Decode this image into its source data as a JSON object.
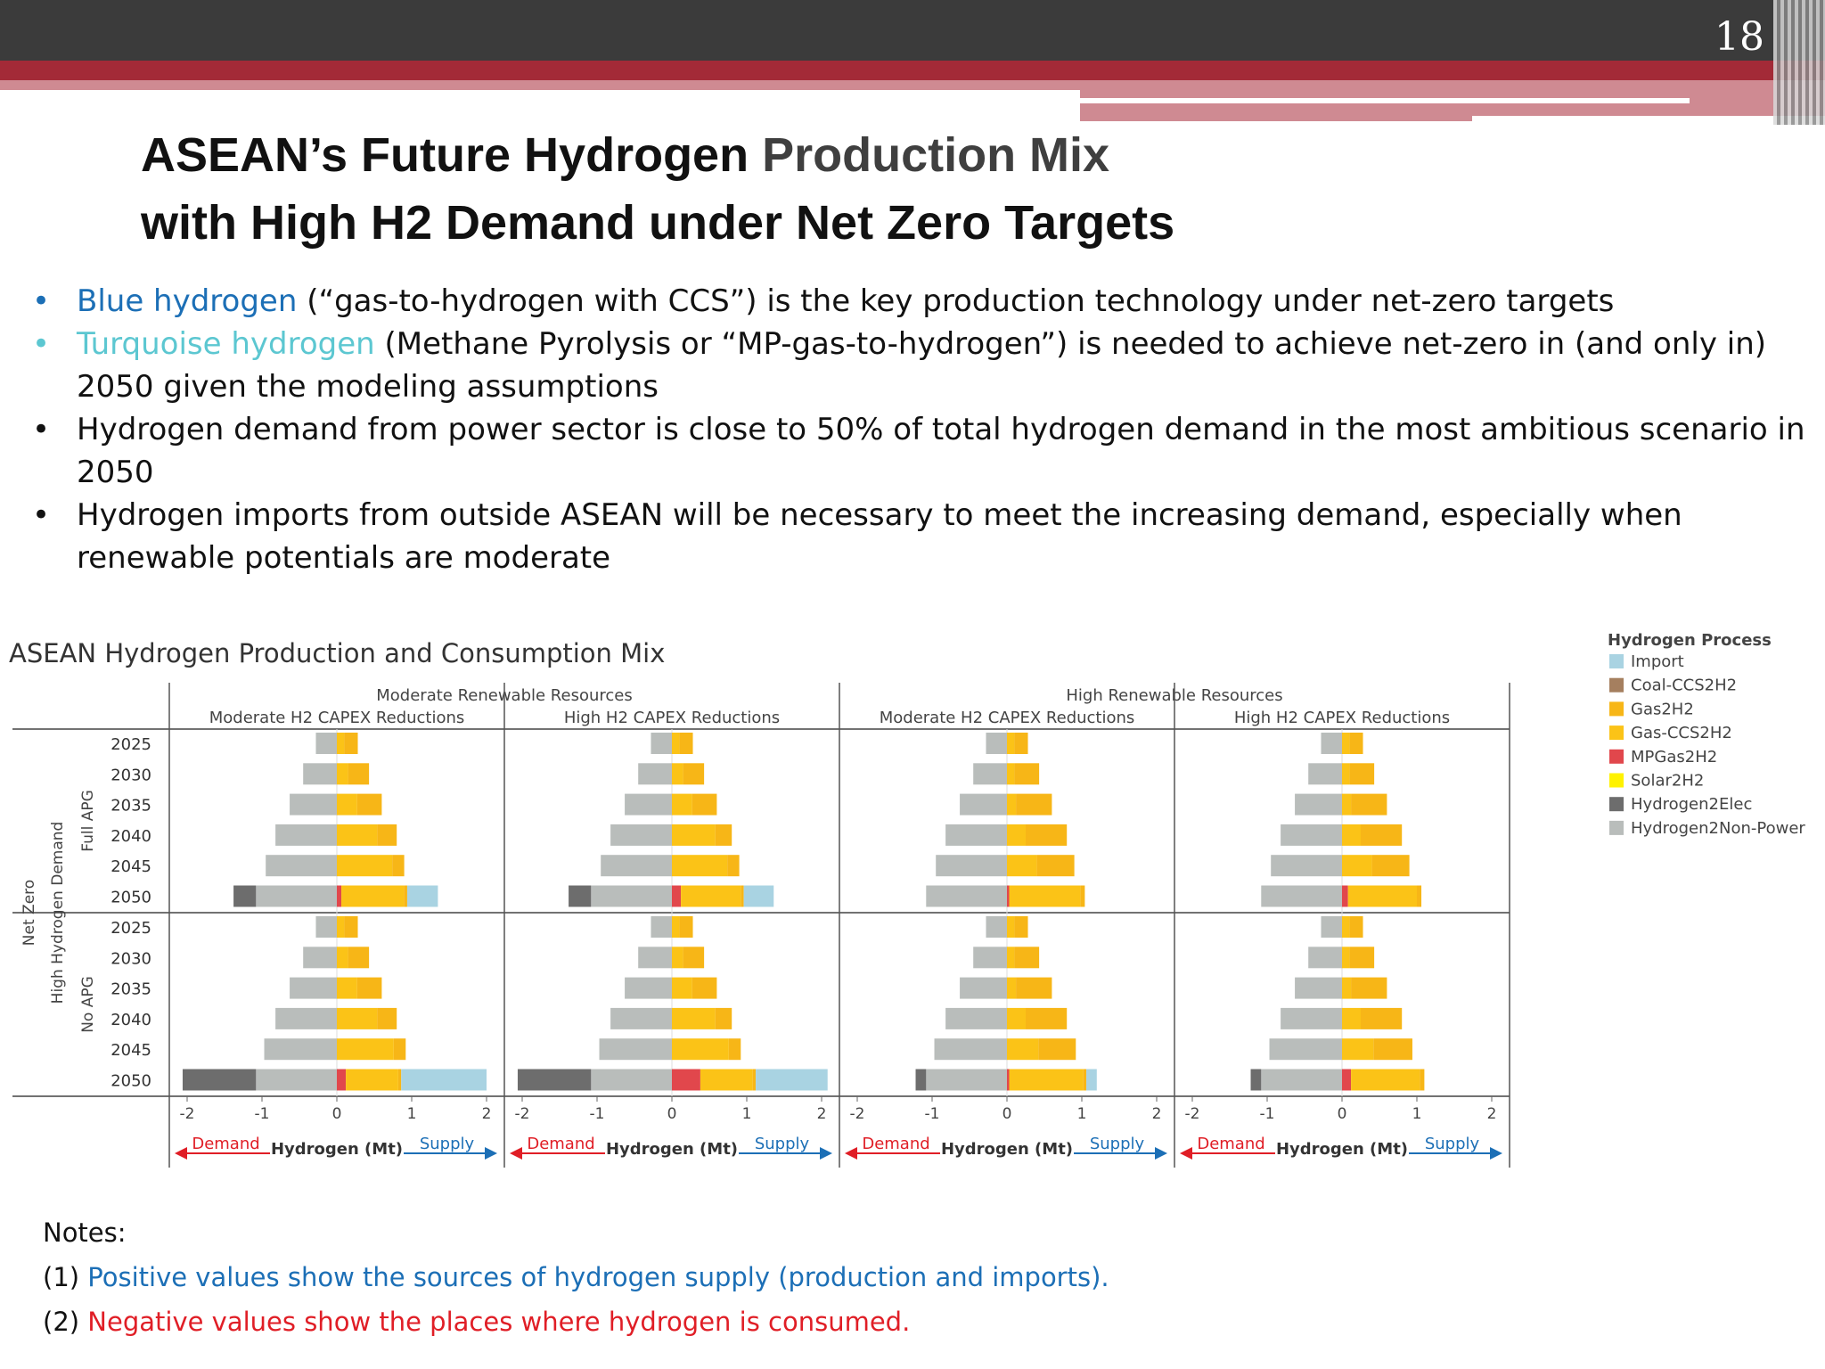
{
  "header": {
    "page_number": "18"
  },
  "title": {
    "line1_a": "ASEAN’s Future Hydrogen ",
    "line1_b": "Production Mix",
    "line2": "with High H2 Demand under Net Zero Targets"
  },
  "bullets": [
    {
      "dot": "•",
      "highlight": "Blue hydrogen",
      "rest": " (“gas-to-hydrogen with CCS”) is the key production technology under net-zero targets"
    },
    {
      "dot": "•",
      "highlight": "Turquoise hydrogen",
      "rest": " (Methane Pyrolysis or “MP-gas-to-hydrogen”) is needed to achieve net-zero in (and only in) 2050 given the modeling assumptions"
    },
    {
      "dot": "•",
      "text": "Hydrogen demand from power sector is close to 50% of total hydrogen demand in the most ambitious scenario in 2050"
    },
    {
      "dot": "•",
      "text": "Hydrogen imports from outside ASEAN will be necessary to meet the increasing demand, especially when renewable potentials are moderate"
    }
  ],
  "notes": {
    "heading": "Notes:",
    "n1_prefix": "(1) ",
    "n1_text": "Positive values show the sources of hydrogen supply (production and imports).",
    "n2_prefix": "(2) ",
    "n2_text": "Negative values show the places where hydrogen is consumed."
  },
  "chart_data": {
    "type": "bar",
    "orientation": "horizontal-stacked",
    "title": "ASEAN Hydrogen Production and Consumption Mix",
    "column_groups": [
      "Moderate Renewable Resources",
      "High Renewable Resources"
    ],
    "columns": [
      "Moderate H2 CAPEX Reductions",
      "High H2 CAPEX Reductions",
      "Moderate H2 CAPEX Reductions",
      "High H2 CAPEX Reductions"
    ],
    "outer_row_label": "Net Zero",
    "middle_row_label": "High Hydrogen Demand",
    "rows": [
      "Full APG",
      "No APG"
    ],
    "years": [
      "2025",
      "2030",
      "2035",
      "2040",
      "2045",
      "2050"
    ],
    "xlabel": "Hydrogen (Mt)",
    "x_ticks": [
      "-2",
      "-1",
      "0",
      "1",
      "2"
    ],
    "xlim": [
      -2,
      2
    ],
    "demand_label": "Demand",
    "supply_label": "Supply",
    "legend_title": "Hydrogen Process",
    "legend": [
      {
        "name": "Import",
        "color": "#a9d3e2"
      },
      {
        "name": "Coal-CCS2H2",
        "color": "#a57f5f"
      },
      {
        "name": "Gas2H2",
        "color": "#f7b617"
      },
      {
        "name": "Gas-CCS2H2",
        "color": "#fbc317"
      },
      {
        "name": "MPGas2H2",
        "color": "#e1474c"
      },
      {
        "name": "Solar2H2",
        "color": "#fff200"
      },
      {
        "name": "Hydrogen2Elec",
        "color": "#6d6d6d"
      },
      {
        "name": "Hydrogen2Non-Power",
        "color": "#b9bdbb"
      }
    ],
    "segment_keys": [
      "Hydrogen2Elec",
      "Hydrogen2Non-Power",
      "MPGas2H2",
      "Gas-CCS2H2",
      "Gas2H2",
      "Import"
    ],
    "panels": [
      {
        "column": 0,
        "row": 0,
        "bars": [
          {
            "year": "2025",
            "Hydrogen2Elec": 0,
            "Hydrogen2Non-Power": -0.28,
            "MPGas2H2": 0,
            "Gas-CCS2H2": 0.1,
            "Gas2H2": 0.18,
            "Import": 0
          },
          {
            "year": "2030",
            "Hydrogen2Elec": 0,
            "Hydrogen2Non-Power": -0.45,
            "MPGas2H2": 0,
            "Gas-CCS2H2": 0.15,
            "Gas2H2": 0.28,
            "Import": 0
          },
          {
            "year": "2035",
            "Hydrogen2Elec": 0,
            "Hydrogen2Non-Power": -0.63,
            "MPGas2H2": 0,
            "Gas-CCS2H2": 0.27,
            "Gas2H2": 0.33,
            "Import": 0
          },
          {
            "year": "2040",
            "Hydrogen2Elec": 0,
            "Hydrogen2Non-Power": -0.82,
            "MPGas2H2": 0,
            "Gas-CCS2H2": 0.54,
            "Gas2H2": 0.26,
            "Import": 0
          },
          {
            "year": "2045",
            "Hydrogen2Elec": 0,
            "Hydrogen2Non-Power": -0.95,
            "MPGas2H2": 0,
            "Gas-CCS2H2": 0.74,
            "Gas2H2": 0.16,
            "Import": 0
          },
          {
            "year": "2050",
            "Hydrogen2Elec": -0.3,
            "Hydrogen2Non-Power": -1.08,
            "MPGas2H2": 0.06,
            "Gas-CCS2H2": 0.84,
            "Gas2H2": 0.04,
            "Import": 0.41
          }
        ]
      },
      {
        "column": 1,
        "row": 0,
        "bars": [
          {
            "year": "2025",
            "Hydrogen2Elec": 0,
            "Hydrogen2Non-Power": -0.28,
            "MPGas2H2": 0,
            "Gas-CCS2H2": 0.1,
            "Gas2H2": 0.18,
            "Import": 0
          },
          {
            "year": "2030",
            "Hydrogen2Elec": 0,
            "Hydrogen2Non-Power": -0.45,
            "MPGas2H2": 0,
            "Gas-CCS2H2": 0.15,
            "Gas2H2": 0.28,
            "Import": 0
          },
          {
            "year": "2035",
            "Hydrogen2Elec": 0,
            "Hydrogen2Non-Power": -0.63,
            "MPGas2H2": 0,
            "Gas-CCS2H2": 0.27,
            "Gas2H2": 0.33,
            "Import": 0
          },
          {
            "year": "2040",
            "Hydrogen2Elec": 0,
            "Hydrogen2Non-Power": -0.82,
            "MPGas2H2": 0,
            "Gas-CCS2H2": 0.58,
            "Gas2H2": 0.22,
            "Import": 0
          },
          {
            "year": "2045",
            "Hydrogen2Elec": 0,
            "Hydrogen2Non-Power": -0.95,
            "MPGas2H2": 0,
            "Gas-CCS2H2": 0.74,
            "Gas2H2": 0.16,
            "Import": 0
          },
          {
            "year": "2050",
            "Hydrogen2Elec": -0.3,
            "Hydrogen2Non-Power": -1.08,
            "MPGas2H2": 0.12,
            "Gas-CCS2H2": 0.8,
            "Gas2H2": 0.04,
            "Import": 0.4
          }
        ]
      },
      {
        "column": 2,
        "row": 0,
        "bars": [
          {
            "year": "2025",
            "Hydrogen2Elec": 0,
            "Hydrogen2Non-Power": -0.28,
            "MPGas2H2": 0,
            "Gas-CCS2H2": 0.1,
            "Gas2H2": 0.18,
            "Import": 0
          },
          {
            "year": "2030",
            "Hydrogen2Elec": 0,
            "Hydrogen2Non-Power": -0.45,
            "MPGas2H2": 0,
            "Gas-CCS2H2": 0.1,
            "Gas2H2": 0.33,
            "Import": 0
          },
          {
            "year": "2035",
            "Hydrogen2Elec": 0,
            "Hydrogen2Non-Power": -0.63,
            "MPGas2H2": 0,
            "Gas-CCS2H2": 0.12,
            "Gas2H2": 0.48,
            "Import": 0
          },
          {
            "year": "2040",
            "Hydrogen2Elec": 0,
            "Hydrogen2Non-Power": -0.82,
            "MPGas2H2": 0,
            "Gas-CCS2H2": 0.25,
            "Gas2H2": 0.55,
            "Import": 0
          },
          {
            "year": "2045",
            "Hydrogen2Elec": 0,
            "Hydrogen2Non-Power": -0.95,
            "MPGas2H2": 0,
            "Gas-CCS2H2": 0.4,
            "Gas2H2": 0.5,
            "Import": 0
          },
          {
            "year": "2050",
            "Hydrogen2Elec": 0,
            "Hydrogen2Non-Power": -1.08,
            "MPGas2H2": 0.03,
            "Gas-CCS2H2": 0.95,
            "Gas2H2": 0.06,
            "Import": 0
          }
        ]
      },
      {
        "column": 3,
        "row": 0,
        "bars": [
          {
            "year": "2025",
            "Hydrogen2Elec": 0,
            "Hydrogen2Non-Power": -0.28,
            "MPGas2H2": 0,
            "Gas-CCS2H2": 0.1,
            "Gas2H2": 0.18,
            "Import": 0
          },
          {
            "year": "2030",
            "Hydrogen2Elec": 0,
            "Hydrogen2Non-Power": -0.45,
            "MPGas2H2": 0,
            "Gas-CCS2H2": 0.1,
            "Gas2H2": 0.33,
            "Import": 0
          },
          {
            "year": "2035",
            "Hydrogen2Elec": 0,
            "Hydrogen2Non-Power": -0.63,
            "MPGas2H2": 0,
            "Gas-CCS2H2": 0.12,
            "Gas2H2": 0.48,
            "Import": 0
          },
          {
            "year": "2040",
            "Hydrogen2Elec": 0,
            "Hydrogen2Non-Power": -0.82,
            "MPGas2H2": 0,
            "Gas-CCS2H2": 0.25,
            "Gas2H2": 0.55,
            "Import": 0
          },
          {
            "year": "2045",
            "Hydrogen2Elec": 0,
            "Hydrogen2Non-Power": -0.95,
            "MPGas2H2": 0,
            "Gas-CCS2H2": 0.4,
            "Gas2H2": 0.5,
            "Import": 0
          },
          {
            "year": "2050",
            "Hydrogen2Elec": 0,
            "Hydrogen2Non-Power": -1.08,
            "MPGas2H2": 0.08,
            "Gas-CCS2H2": 0.92,
            "Gas2H2": 0.06,
            "Import": 0
          }
        ]
      },
      {
        "column": 0,
        "row": 1,
        "bars": [
          {
            "year": "2025",
            "Hydrogen2Elec": 0,
            "Hydrogen2Non-Power": -0.28,
            "MPGas2H2": 0,
            "Gas-CCS2H2": 0.1,
            "Gas2H2": 0.18,
            "Import": 0
          },
          {
            "year": "2030",
            "Hydrogen2Elec": 0,
            "Hydrogen2Non-Power": -0.45,
            "MPGas2H2": 0,
            "Gas-CCS2H2": 0.15,
            "Gas2H2": 0.28,
            "Import": 0
          },
          {
            "year": "2035",
            "Hydrogen2Elec": 0,
            "Hydrogen2Non-Power": -0.63,
            "MPGas2H2": 0,
            "Gas-CCS2H2": 0.27,
            "Gas2H2": 0.33,
            "Import": 0
          },
          {
            "year": "2040",
            "Hydrogen2Elec": 0,
            "Hydrogen2Non-Power": -0.82,
            "MPGas2H2": 0,
            "Gas-CCS2H2": 0.54,
            "Gas2H2": 0.26,
            "Import": 0
          },
          {
            "year": "2045",
            "Hydrogen2Elec": 0,
            "Hydrogen2Non-Power": -0.97,
            "MPGas2H2": 0,
            "Gas-CCS2H2": 0.76,
            "Gas2H2": 0.16,
            "Import": 0
          },
          {
            "year": "2050",
            "Hydrogen2Elec": -0.98,
            "Hydrogen2Non-Power": -1.08,
            "MPGas2H2": 0.12,
            "Gas-CCS2H2": 0.7,
            "Gas2H2": 0.04,
            "Import": 1.14
          }
        ]
      },
      {
        "column": 1,
        "row": 1,
        "bars": [
          {
            "year": "2025",
            "Hydrogen2Elec": 0,
            "Hydrogen2Non-Power": -0.28,
            "MPGas2H2": 0,
            "Gas-CCS2H2": 0.1,
            "Gas2H2": 0.18,
            "Import": 0
          },
          {
            "year": "2030",
            "Hydrogen2Elec": 0,
            "Hydrogen2Non-Power": -0.45,
            "MPGas2H2": 0,
            "Gas-CCS2H2": 0.15,
            "Gas2H2": 0.28,
            "Import": 0
          },
          {
            "year": "2035",
            "Hydrogen2Elec": 0,
            "Hydrogen2Non-Power": -0.63,
            "MPGas2H2": 0,
            "Gas-CCS2H2": 0.27,
            "Gas2H2": 0.33,
            "Import": 0
          },
          {
            "year": "2040",
            "Hydrogen2Elec": 0,
            "Hydrogen2Non-Power": -0.82,
            "MPGas2H2": 0,
            "Gas-CCS2H2": 0.58,
            "Gas2H2": 0.22,
            "Import": 0
          },
          {
            "year": "2045",
            "Hydrogen2Elec": 0,
            "Hydrogen2Non-Power": -0.97,
            "MPGas2H2": 0,
            "Gas-CCS2H2": 0.76,
            "Gas2H2": 0.16,
            "Import": 0
          },
          {
            "year": "2050",
            "Hydrogen2Elec": -0.98,
            "Hydrogen2Non-Power": -1.08,
            "MPGas2H2": 0.38,
            "Gas-CCS2H2": 0.7,
            "Gas2H2": 0.04,
            "Import": 0.96
          }
        ]
      },
      {
        "column": 2,
        "row": 1,
        "bars": [
          {
            "year": "2025",
            "Hydrogen2Elec": 0,
            "Hydrogen2Non-Power": -0.28,
            "MPGas2H2": 0,
            "Gas-CCS2H2": 0.1,
            "Gas2H2": 0.18,
            "Import": 0
          },
          {
            "year": "2030",
            "Hydrogen2Elec": 0,
            "Hydrogen2Non-Power": -0.45,
            "MPGas2H2": 0,
            "Gas-CCS2H2": 0.1,
            "Gas2H2": 0.33,
            "Import": 0
          },
          {
            "year": "2035",
            "Hydrogen2Elec": 0,
            "Hydrogen2Non-Power": -0.63,
            "MPGas2H2": 0,
            "Gas-CCS2H2": 0.12,
            "Gas2H2": 0.48,
            "Import": 0
          },
          {
            "year": "2040",
            "Hydrogen2Elec": 0,
            "Hydrogen2Non-Power": -0.82,
            "MPGas2H2": 0,
            "Gas-CCS2H2": 0.25,
            "Gas2H2": 0.55,
            "Import": 0
          },
          {
            "year": "2045",
            "Hydrogen2Elec": 0,
            "Hydrogen2Non-Power": -0.97,
            "MPGas2H2": 0,
            "Gas-CCS2H2": 0.42,
            "Gas2H2": 0.5,
            "Import": 0
          },
          {
            "year": "2050",
            "Hydrogen2Elec": -0.14,
            "Hydrogen2Non-Power": -1.08,
            "MPGas2H2": 0.03,
            "Gas-CCS2H2": 0.99,
            "Gas2H2": 0.04,
            "Import": 0.14
          }
        ]
      },
      {
        "column": 3,
        "row": 1,
        "bars": [
          {
            "year": "2025",
            "Hydrogen2Elec": 0,
            "Hydrogen2Non-Power": -0.28,
            "MPGas2H2": 0,
            "Gas-CCS2H2": 0.1,
            "Gas2H2": 0.18,
            "Import": 0
          },
          {
            "year": "2030",
            "Hydrogen2Elec": 0,
            "Hydrogen2Non-Power": -0.45,
            "MPGas2H2": 0,
            "Gas-CCS2H2": 0.1,
            "Gas2H2": 0.33,
            "Import": 0
          },
          {
            "year": "2035",
            "Hydrogen2Elec": 0,
            "Hydrogen2Non-Power": -0.63,
            "MPGas2H2": 0,
            "Gas-CCS2H2": 0.12,
            "Gas2H2": 0.48,
            "Import": 0
          },
          {
            "year": "2040",
            "Hydrogen2Elec": 0,
            "Hydrogen2Non-Power": -0.82,
            "MPGas2H2": 0,
            "Gas-CCS2H2": 0.25,
            "Gas2H2": 0.55,
            "Import": 0
          },
          {
            "year": "2045",
            "Hydrogen2Elec": 0,
            "Hydrogen2Non-Power": -0.97,
            "MPGas2H2": 0,
            "Gas-CCS2H2": 0.42,
            "Gas2H2": 0.52,
            "Import": 0
          },
          {
            "year": "2050",
            "Hydrogen2Elec": -0.14,
            "Hydrogen2Non-Power": -1.08,
            "MPGas2H2": 0.12,
            "Gas-CCS2H2": 0.92,
            "Gas2H2": 0.06,
            "Import": 0
          }
        ]
      }
    ]
  }
}
